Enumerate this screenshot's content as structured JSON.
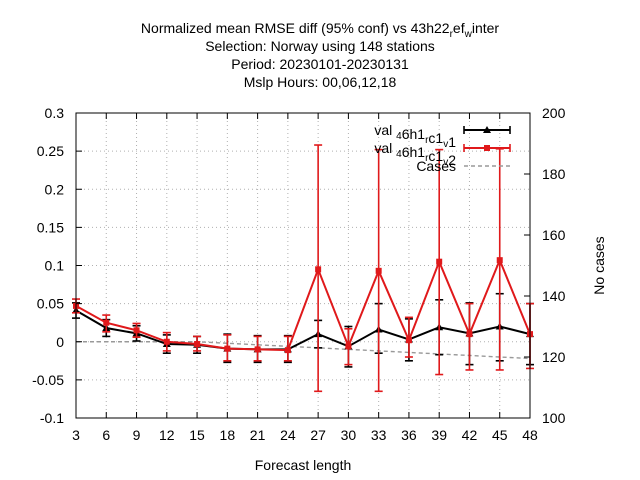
{
  "title_lines": [
    "Normalized mean RMSE diff (95% conf) vs 43h22",
    "Selection: Norway using   148 stations",
    "Period: 20230101-20230131",
    "Mslp   Hours:  00,06,12,18"
  ],
  "title_subscripts": [
    "r",
    "ef",
    "w",
    "inter"
  ],
  "chart_data": {
    "type": "line",
    "title": "Normalized mean RMSE diff (95% conf) vs 43h22_ref_winter",
    "xlabel": "Forecast length",
    "ylabel": "",
    "y2label": "No cases",
    "categories": [
      "3",
      "6",
      "9",
      "12",
      "15",
      "18",
      "21",
      "24",
      "27",
      "30",
      "33",
      "36",
      "39",
      "42",
      "45",
      "48"
    ],
    "x": [
      3,
      6,
      9,
      12,
      15,
      18,
      21,
      24,
      27,
      30,
      33,
      36,
      39,
      42,
      45,
      48
    ],
    "ylim": [
      -0.1,
      0.3
    ],
    "yticks": [
      -0.1,
      -0.05,
      0,
      0.05,
      0.1,
      0.15,
      0.2,
      0.25,
      0.3
    ],
    "ytick_labels": [
      "-0.1",
      "-0.05",
      "0",
      "0.05",
      "0.1",
      "0.15",
      "0.2",
      "0.25",
      "0.3"
    ],
    "y2lim": [
      100,
      200
    ],
    "y2ticks": [
      100,
      120,
      140,
      160,
      180,
      200
    ],
    "y2tick_labels": [
      "100",
      "120",
      "140",
      "160",
      "180",
      "200"
    ],
    "grid": true,
    "legend_position": "top-right",
    "series": [
      {
        "name": "val_46h1_rc1_v1",
        "legend_label": "val",
        "legend_parts": [
          "4",
          "6h1",
          "r",
          "c1",
          "v",
          "1"
        ],
        "color": "#000000",
        "marker": "triangle",
        "values": [
          0.041,
          0.018,
          0.011,
          -0.003,
          -0.004,
          -0.009,
          -0.01,
          -0.01,
          0.01,
          -0.006,
          0.016,
          0.003,
          0.019,
          0.011,
          0.02,
          0.01
        ],
        "lower": [
          0.031,
          0.007,
          0.001,
          -0.015,
          -0.015,
          -0.027,
          -0.027,
          -0.027,
          -0.008,
          -0.033,
          -0.015,
          -0.025,
          -0.017,
          -0.03,
          -0.025,
          -0.03
        ],
        "upper": [
          0.051,
          0.029,
          0.021,
          0.009,
          0.007,
          0.01,
          0.008,
          0.008,
          0.028,
          0.02,
          0.05,
          0.03,
          0.055,
          0.051,
          0.063,
          0.05
        ]
      },
      {
        "name": "val_46h1_rc1_v2",
        "legend_label": "val",
        "legend_parts": [
          "4",
          "6h1",
          "r",
          "c1",
          "v",
          "2"
        ],
        "color": "#e0191b",
        "marker": "x",
        "values": [
          0.047,
          0.025,
          0.015,
          0.0,
          -0.003,
          -0.009,
          -0.01,
          -0.011,
          0.095,
          -0.006,
          0.093,
          0.002,
          0.105,
          0.01,
          0.107,
          0.01
        ],
        "lower": [
          0.038,
          0.013,
          0.006,
          -0.012,
          -0.012,
          -0.025,
          -0.025,
          -0.025,
          -0.065,
          -0.03,
          -0.065,
          -0.02,
          -0.043,
          -0.037,
          -0.037,
          -0.035
        ],
        "upper": [
          0.056,
          0.035,
          0.024,
          0.012,
          0.007,
          0.009,
          0.007,
          0.007,
          0.258,
          0.017,
          0.252,
          0.032,
          0.252,
          0.05,
          0.253,
          0.05
        ]
      },
      {
        "name": "Cases",
        "legend_label": "Cases",
        "color": "#999999",
        "dash": true,
        "axis": "y2",
        "values": [
          125,
          125,
          125,
          125,
          125,
          124.5,
          124,
          123.5,
          123,
          122.5,
          122,
          121.5,
          121,
          120.5,
          120,
          119.5
        ]
      }
    ]
  }
}
